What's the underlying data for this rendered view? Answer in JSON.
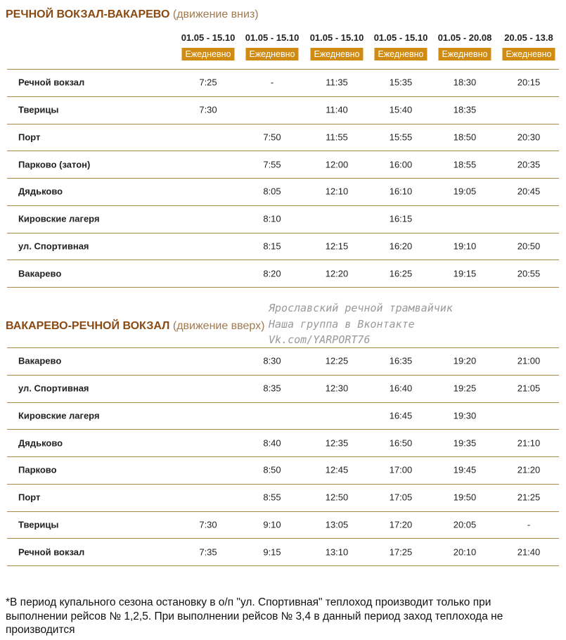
{
  "table1": {
    "title": "РЕЧНОЙ ВОКЗАЛ-ВАКАРЕВО",
    "subtitle": "(движение вниз)",
    "columns": [
      {
        "period": "01.05 - 15.10",
        "days": "Ежедневно"
      },
      {
        "period": "01.05 - 15.10",
        "days": "Ежедневно"
      },
      {
        "period": "01.05 - 15.10",
        "days": "Ежедневно"
      },
      {
        "period": "01.05 - 15.10",
        "days": "Ежедневно"
      },
      {
        "period": "01.05 - 20.08",
        "days": "Ежедневно"
      },
      {
        "period": "20.05 - 13.8",
        "days": "Ежедневно"
      }
    ],
    "rows": [
      [
        "Речной вокзал",
        "7:25",
        "-",
        "11:35",
        "15:35",
        "18:30",
        "20:15"
      ],
      [
        "Тверицы",
        "7:30",
        null,
        "11:40",
        "15:40",
        "18:35",
        null
      ],
      [
        "Порт",
        null,
        "7:50",
        "11:55",
        "15:55",
        "18:50",
        "20:30"
      ],
      [
        "Парково (затон)",
        null,
        "7:55",
        "12:00",
        "16:00",
        "18:55",
        "20:35"
      ],
      [
        "Дядьково",
        null,
        "8:05",
        "12:10",
        "16:10",
        "19:05",
        "20:45"
      ],
      [
        "Кировские лагеря",
        null,
        "8:10",
        null,
        "16:15",
        null,
        null
      ],
      [
        "ул. Спортивная",
        null,
        "8:15",
        "12:15",
        "16:20",
        "19:10",
        "20:50"
      ],
      [
        "Вакарево",
        null,
        "8:20",
        "12:20",
        "16:25",
        "19:15",
        "20:55"
      ]
    ]
  },
  "table2": {
    "title": "ВАКАРЕВО-РЕЧНОЙ ВОКЗАЛ",
    "subtitle": "(движение вверх)",
    "rows": [
      [
        "Вакарево",
        null,
        "8:30",
        "12:25",
        "16:35",
        "19:20",
        "21:00"
      ],
      [
        "ул. Спортивная",
        null,
        "8:35",
        "12:30",
        "16:40",
        "19:25",
        "21:05"
      ],
      [
        "Кировские лагеря",
        null,
        null,
        null,
        "16:45",
        "19:30",
        null
      ],
      [
        "Дядьково",
        null,
        "8:40",
        "12:35",
        "16:50",
        "19:35",
        "21:10"
      ],
      [
        "Парково",
        null,
        "8:50",
        "12:45",
        "17:00",
        "19:45",
        "21:20"
      ],
      [
        "Порт",
        null,
        "8:55",
        "12:50",
        "17:05",
        "19:50",
        "21:25"
      ],
      [
        "Тверицы",
        "7:30",
        "9:10",
        "13:05",
        "17:20",
        "20:05",
        "-"
      ],
      [
        "Речной вокзал",
        "7:35",
        "9:15",
        "13:10",
        "17:25",
        "20:10",
        "21:40"
      ]
    ]
  },
  "watermark": [
    "Ярославский речной трамвайчик",
    "Наша группа в Вконтакте",
    "Vk.com/YARPORT76"
  ],
  "footnote": [
    "*В период купального сезона остановку в о/п \"ул. Спортивная\" теплоход производит только при",
    "выполнении рейсов № 1,2,5. При выполнении рейсов № 3,4 в данный период заход теплохода не",
    "производится"
  ]
}
